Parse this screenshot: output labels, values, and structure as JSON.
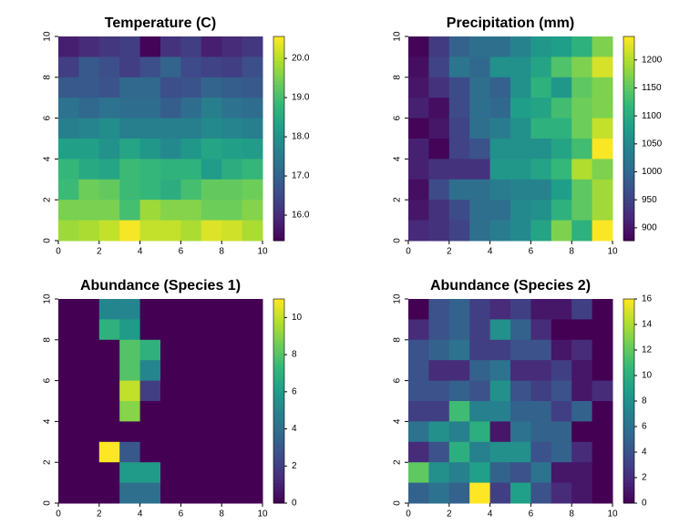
{
  "chart_data": [
    {
      "type": "heatmap",
      "title": "Temperature (C)",
      "colormap": "viridis",
      "xlim": [
        0,
        10
      ],
      "xticks": [
        0,
        2,
        4,
        6,
        8,
        10
      ],
      "ylim": [
        0,
        10
      ],
      "yticks": [
        0,
        2,
        4,
        6,
        8,
        10
      ],
      "zlim": [
        15.35,
        20.56
      ],
      "zticks": [
        {
          "value": 16,
          "label": "16.0"
        },
        {
          "value": 17,
          "label": "17.0"
        },
        {
          "value": 18,
          "label": "18.0"
        },
        {
          "value": 19,
          "label": "19.0"
        },
        {
          "value": 20,
          "label": "20.0"
        }
      ],
      "values": [
        [
          15.8,
          16.0,
          16.2,
          16.3,
          15.4,
          16.1,
          16.3,
          15.8,
          16.0,
          16.2
        ],
        [
          16.3,
          16.8,
          16.6,
          16.3,
          16.6,
          17.0,
          16.5,
          16.4,
          16.3,
          16.6
        ],
        [
          16.8,
          16.8,
          16.7,
          17.1,
          17.1,
          16.6,
          16.7,
          17.0,
          16.9,
          16.8
        ],
        [
          17.3,
          17.1,
          17.3,
          17.2,
          17.2,
          16.9,
          17.2,
          17.6,
          17.3,
          17.2
        ],
        [
          17.6,
          17.7,
          17.9,
          17.6,
          17.6,
          17.6,
          17.6,
          17.8,
          17.7,
          17.6
        ],
        [
          18.3,
          18.3,
          18.0,
          18.4,
          18.1,
          17.8,
          18.1,
          18.4,
          18.3,
          18.2
        ],
        [
          18.8,
          18.5,
          18.4,
          18.9,
          18.8,
          18.7,
          18.7,
          18.2,
          18.6,
          18.8
        ],
        [
          18.9,
          19.4,
          19.3,
          18.9,
          18.8,
          18.6,
          19.0,
          19.3,
          19.3,
          19.4
        ],
        [
          19.5,
          19.5,
          19.5,
          19.0,
          19.8,
          19.6,
          19.6,
          19.4,
          19.4,
          19.6
        ],
        [
          19.8,
          19.9,
          20.1,
          20.5,
          20.1,
          20.1,
          19.9,
          20.3,
          20.2,
          19.9
        ]
      ]
    },
    {
      "type": "heatmap",
      "title": "Precipitation (mm)",
      "colormap": "viridis",
      "xlim": [
        0,
        10
      ],
      "xticks": [
        0,
        2,
        4,
        6,
        8,
        10
      ],
      "ylim": [
        0,
        10
      ],
      "yticks": [
        0,
        2,
        4,
        6,
        8,
        10
      ],
      "zlim": [
        877,
        1242
      ],
      "zticks": [
        900,
        950,
        1000,
        1050,
        1100,
        1150,
        1200
      ],
      "values": [
        [
          880,
          940,
          990,
          1010,
          1010,
          1040,
          1070,
          1080,
          1110,
          1170
        ],
        [
          890,
          950,
          1020,
          1000,
          1060,
          1060,
          1090,
          1140,
          1170,
          1220
        ],
        [
          900,
          930,
          960,
          1010,
          990,
          1060,
          1110,
          1070,
          1150,
          1170
        ],
        [
          910,
          890,
          960,
          1010,
          1000,
          1080,
          1090,
          1130,
          1160,
          1170
        ],
        [
          880,
          900,
          950,
          1010,
          1030,
          1060,
          1110,
          1110,
          1160,
          1210
        ],
        [
          910,
          880,
          950,
          970,
          1060,
          1060,
          1060,
          1090,
          1130,
          1240
        ],
        [
          910,
          930,
          930,
          930,
          1070,
          1070,
          1090,
          1120,
          1200,
          1170
        ],
        [
          890,
          960,
          1010,
          1010,
          1030,
          1040,
          1040,
          1080,
          1150,
          1190
        ],
        [
          900,
          930,
          960,
          1010,
          1010,
          1050,
          1060,
          1110,
          1150,
          1190
        ],
        [
          920,
          930,
          950,
          1010,
          1030,
          1050,
          1090,
          1170,
          1110,
          1240
        ]
      ]
    },
    {
      "type": "heatmap",
      "title": "Abundance (Species 1)",
      "colormap": "viridis",
      "xlim": [
        0,
        10
      ],
      "xticks": [
        0,
        2,
        4,
        6,
        8,
        10
      ],
      "ylim": [
        0,
        10
      ],
      "yticks": [
        0,
        2,
        4,
        6,
        8,
        10
      ],
      "zlim": [
        0,
        11
      ],
      "zticks": [
        0,
        2,
        4,
        6,
        8,
        10
      ],
      "values": [
        [
          0,
          0,
          5,
          5,
          0,
          0,
          0,
          0,
          0,
          0
        ],
        [
          0,
          0,
          7,
          6,
          0,
          0,
          0,
          0,
          0,
          0
        ],
        [
          0,
          0,
          0,
          8,
          7,
          0,
          0,
          0,
          0,
          0
        ],
        [
          0,
          0,
          0,
          8,
          5,
          0,
          0,
          0,
          0,
          0
        ],
        [
          0,
          0,
          0,
          10,
          2,
          0,
          0,
          0,
          0,
          0
        ],
        [
          0,
          0,
          0,
          9,
          0,
          0,
          0,
          0,
          0,
          0
        ],
        [
          0,
          0,
          0,
          0,
          0,
          0,
          0,
          0,
          0,
          0
        ],
        [
          0,
          0,
          11,
          3,
          0,
          0,
          0,
          0,
          0,
          0
        ],
        [
          0,
          0,
          0,
          6,
          6,
          0,
          0,
          0,
          0,
          0
        ],
        [
          0,
          0,
          0,
          4,
          4,
          0,
          0,
          0,
          0,
          0
        ]
      ]
    },
    {
      "type": "heatmap",
      "title": "Abundance (Species 2)",
      "colormap": "viridis",
      "xlim": [
        0,
        10
      ],
      "xticks": [
        0,
        2,
        4,
        6,
        8,
        10
      ],
      "ylim": [
        0,
        10
      ],
      "yticks": [
        0,
        2,
        4,
        6,
        8,
        10
      ],
      "zlim": [
        0,
        16
      ],
      "zticks": [
        0,
        2,
        4,
        6,
        8,
        10,
        12,
        14,
        16
      ],
      "values": [
        [
          0,
          4,
          5,
          3,
          2,
          3,
          1,
          1,
          3,
          0
        ],
        [
          2,
          4,
          5,
          3,
          8,
          5,
          2,
          0,
          0,
          0
        ],
        [
          4,
          5,
          6,
          3,
          3,
          4,
          4,
          1,
          2,
          0
        ],
        [
          4,
          2,
          2,
          5,
          6,
          2,
          2,
          3,
          1,
          0
        ],
        [
          4,
          4,
          5,
          4,
          8,
          4,
          3,
          4,
          1,
          2
        ],
        [
          3,
          3,
          11,
          7,
          7,
          5,
          5,
          3,
          5,
          0
        ],
        [
          6,
          8,
          7,
          10,
          1,
          6,
          5,
          5,
          0,
          0
        ],
        [
          2,
          4,
          10,
          7,
          8,
          8,
          4,
          5,
          2,
          0
        ],
        [
          12,
          8,
          7,
          9,
          5,
          4,
          6,
          1,
          1,
          0
        ],
        [
          5,
          6,
          5,
          16,
          3,
          9,
          4,
          2,
          1,
          0
        ]
      ]
    }
  ]
}
